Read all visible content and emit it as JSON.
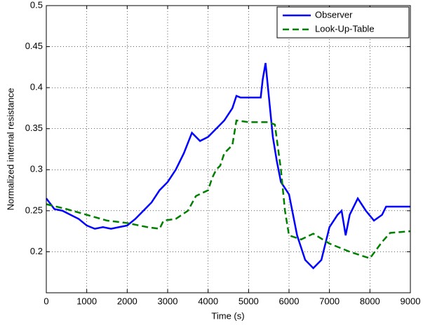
{
  "chart_data": {
    "type": "line",
    "xlabel": "Time (s)",
    "ylabel": "Normalized internal resistance",
    "xlim": [
      0,
      9000
    ],
    "xticks": [
      0,
      1000,
      2000,
      3000,
      4000,
      5000,
      6000,
      7000,
      8000,
      9000
    ],
    "ylim": [
      0.15,
      0.5
    ],
    "yticks": [
      0.2,
      0.25,
      0.3,
      0.35,
      0.4,
      0.45,
      0.5
    ],
    "grid": true,
    "legend": "upper-right",
    "series": [
      {
        "name": "Observer",
        "color": "#0000ff",
        "dash": "solid",
        "x": [
          0,
          200,
          400,
          600,
          800,
          1000,
          1200,
          1400,
          1600,
          1800,
          2000,
          2200,
          2400,
          2600,
          2800,
          3000,
          3200,
          3400,
          3600,
          3800,
          4000,
          4200,
          4400,
          4600,
          4700,
          4800,
          5000,
          5300,
          5350,
          5420,
          5500,
          5600,
          5700,
          5800,
          6000,
          6200,
          6400,
          6600,
          6800,
          7000,
          7200,
          7300,
          7400,
          7500,
          7700,
          7900,
          8100,
          8300,
          8400,
          9000
        ],
        "values": [
          0.265,
          0.252,
          0.25,
          0.245,
          0.24,
          0.232,
          0.228,
          0.23,
          0.228,
          0.23,
          0.232,
          0.24,
          0.25,
          0.26,
          0.275,
          0.285,
          0.3,
          0.32,
          0.345,
          0.335,
          0.34,
          0.35,
          0.36,
          0.375,
          0.39,
          0.388,
          0.388,
          0.388,
          0.41,
          0.43,
          0.39,
          0.34,
          0.31,
          0.285,
          0.27,
          0.22,
          0.19,
          0.18,
          0.19,
          0.23,
          0.245,
          0.25,
          0.22,
          0.245,
          0.265,
          0.25,
          0.238,
          0.245,
          0.255,
          0.255
        ]
      },
      {
        "name": "Look-Up-Table",
        "color": "#008000",
        "dash": "dashed",
        "x": [
          0,
          500,
          1000,
          1500,
          2000,
          2500,
          2800,
          2900,
          3200,
          3500,
          3700,
          4000,
          4100,
          4200,
          4300,
          4400,
          4600,
          4700,
          5000,
          5500,
          5650,
          5800,
          5900,
          6000,
          6300,
          6600,
          7000,
          7500,
          8000,
          8300,
          8500,
          9000
        ],
        "values": [
          0.258,
          0.252,
          0.245,
          0.238,
          0.235,
          0.23,
          0.228,
          0.238,
          0.24,
          0.25,
          0.268,
          0.275,
          0.29,
          0.3,
          0.305,
          0.32,
          0.33,
          0.36,
          0.358,
          0.358,
          0.355,
          0.3,
          0.25,
          0.22,
          0.215,
          0.222,
          0.21,
          0.2,
          0.192,
          0.212,
          0.223,
          0.225
        ]
      }
    ]
  }
}
